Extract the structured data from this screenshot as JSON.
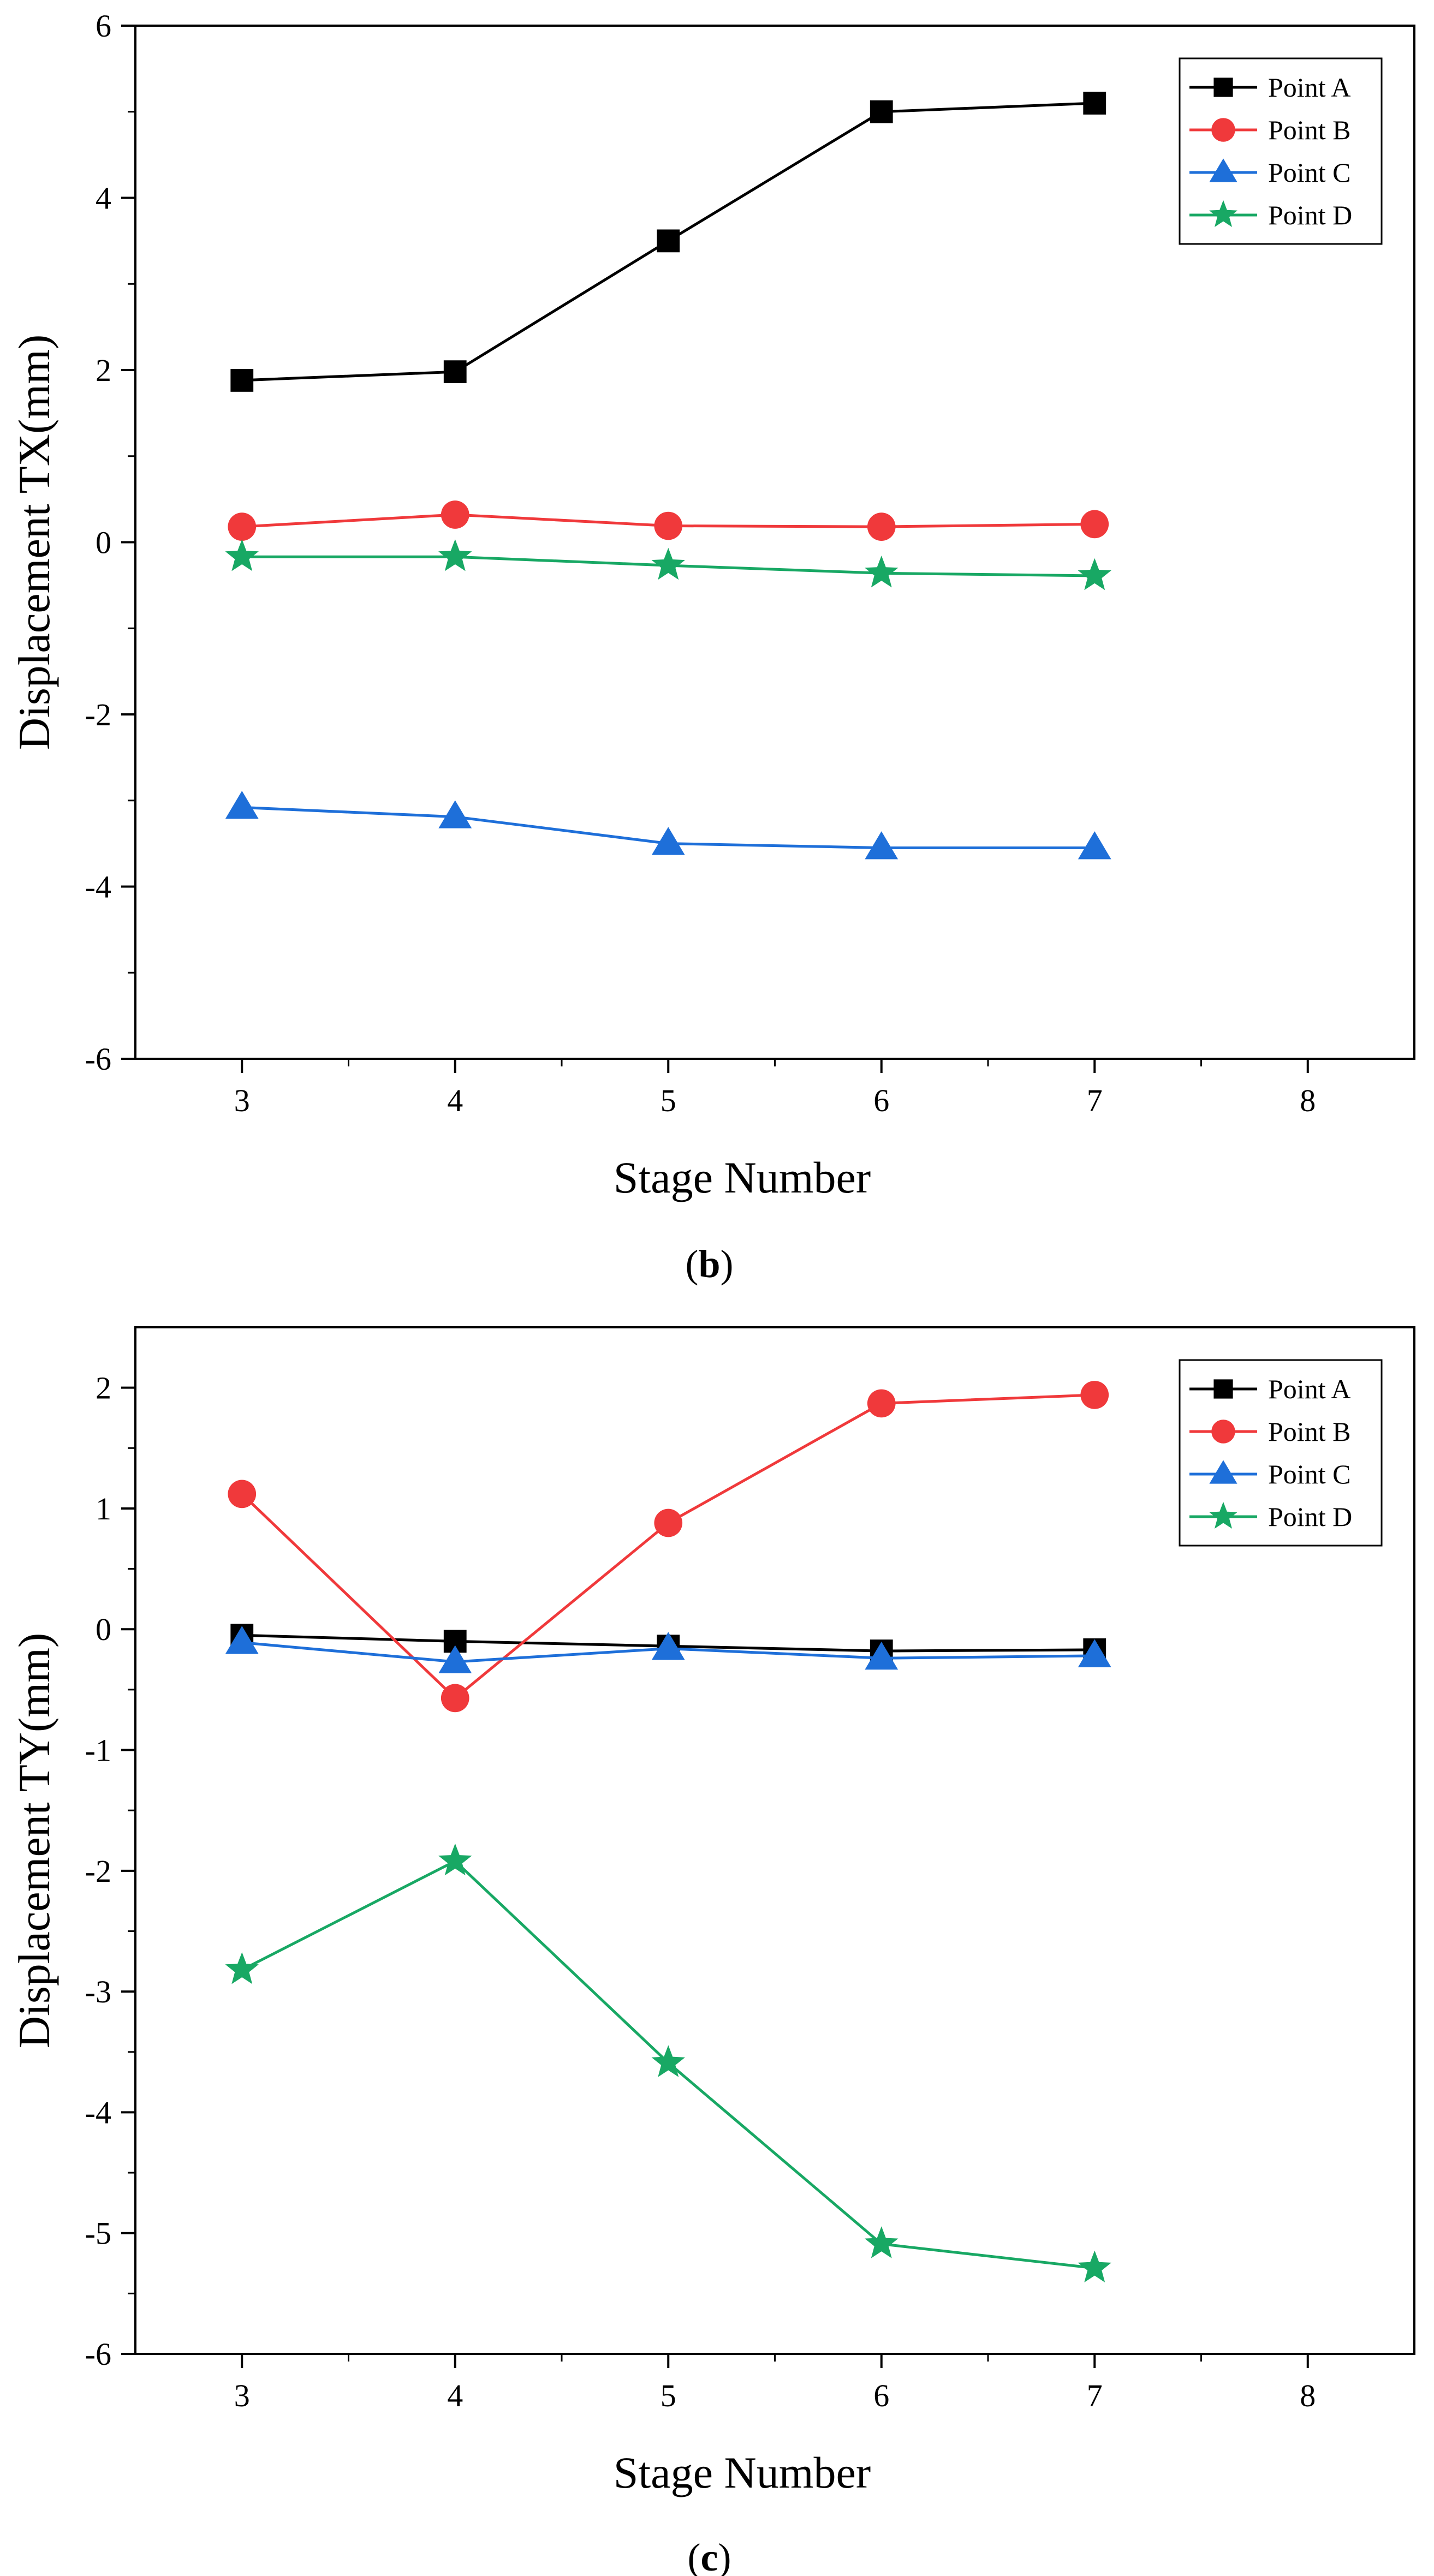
{
  "chart_data": [
    {
      "type": "line",
      "caption_open": "(",
      "caption_letter": "b",
      "caption_close": ")",
      "xlabel": "Stage Number",
      "ylabel": "Displacement TX(mm)",
      "xlim": [
        2.5,
        8.5
      ],
      "ylim": [
        -6,
        6
      ],
      "xticks": [
        3,
        4,
        5,
        6,
        7,
        8
      ],
      "yticks": [
        -6,
        -4,
        -2,
        0,
        2,
        4,
        6
      ],
      "ytick_labels": [
        "-6",
        "-4",
        "-2",
        "0",
        "2",
        "4",
        "6"
      ],
      "legend_position": "top-right",
      "x": [
        3,
        4,
        5,
        6,
        7
      ],
      "series": [
        {
          "name": "Point A",
          "color": "#000000",
          "marker": "square",
          "values": [
            1.88,
            1.98,
            3.5,
            5.0,
            5.1
          ]
        },
        {
          "name": "Point B",
          "color": "#f0393b",
          "marker": "circle",
          "values": [
            0.18,
            0.32,
            0.19,
            0.18,
            0.21
          ]
        },
        {
          "name": "Point C",
          "color": "#1e6fd9",
          "marker": "triangle",
          "values": [
            -3.08,
            -3.19,
            -3.5,
            -3.55,
            -3.55
          ]
        },
        {
          "name": "Point D",
          "color": "#18a864",
          "marker": "star",
          "values": [
            -0.17,
            -0.17,
            -0.27,
            -0.36,
            -0.39
          ]
        }
      ]
    },
    {
      "type": "line",
      "caption_open": "(",
      "caption_letter": "c",
      "caption_close": ")",
      "xlabel": "Stage Number",
      "ylabel": "Displacement TY(mm)",
      "xlim": [
        2.5,
        8.5
      ],
      "ylim": [
        -6,
        2.5
      ],
      "xticks": [
        3,
        4,
        5,
        6,
        7,
        8
      ],
      "yticks": [
        -6,
        -5,
        -4,
        -3,
        -2,
        -1,
        0,
        1,
        2
      ],
      "ytick_labels": [
        "-6",
        "-5",
        "-4",
        "-3",
        "-2",
        "-1",
        "0",
        "1",
        "2"
      ],
      "legend_position": "top-right",
      "x": [
        3,
        4,
        5,
        6,
        7
      ],
      "series": [
        {
          "name": "Point A",
          "color": "#000000",
          "marker": "square",
          "values": [
            -0.05,
            -0.1,
            -0.14,
            -0.18,
            -0.17
          ]
        },
        {
          "name": "Point B",
          "color": "#f0393b",
          "marker": "circle",
          "values": [
            1.12,
            -0.57,
            0.88,
            1.87,
            1.94
          ]
        },
        {
          "name": "Point C",
          "color": "#1e6fd9",
          "marker": "triangle",
          "values": [
            -0.11,
            -0.27,
            -0.16,
            -0.24,
            -0.22
          ]
        },
        {
          "name": "Point D",
          "color": "#18a864",
          "marker": "star",
          "values": [
            -2.82,
            -1.92,
            -3.59,
            -5.09,
            -5.29
          ]
        }
      ]
    }
  ]
}
